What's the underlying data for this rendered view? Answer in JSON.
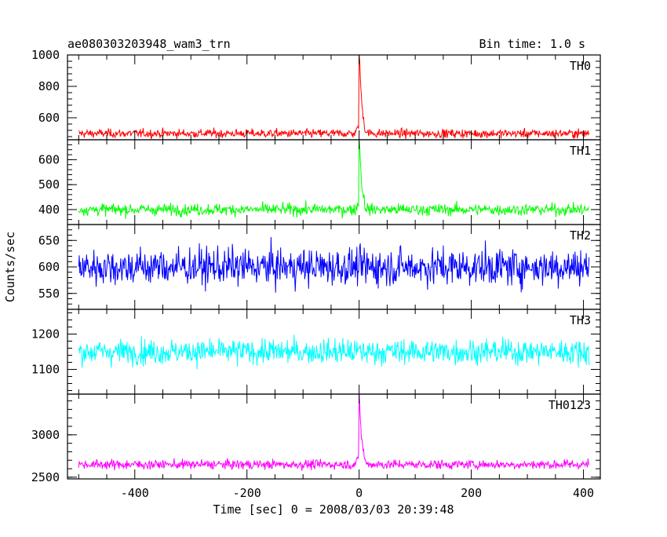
{
  "chart_data": {
    "type": "line",
    "title_left": "ae080303203948_wam3_trn",
    "title_right": "Bin time: 1.0 s",
    "xlabel": "Time [sec] 0 = 2008/03/03 20:39:48",
    "ylabel": "Counts/sec",
    "xlim": [
      -520,
      430
    ],
    "x_ticks": [
      -400,
      -200,
      0,
      200,
      400
    ],
    "x_range": [
      -500,
      410
    ],
    "panels": [
      {
        "name": "TH0",
        "color": "#ff0000",
        "ylim": [
          460,
          1000
        ],
        "ticks": [
          600,
          800,
          1000
        ],
        "base": 500,
        "noise": 35,
        "peak": 520
      },
      {
        "name": "TH1",
        "color": "#00ff00",
        "ylim": [
          340,
          680
        ],
        "ticks": [
          400,
          500,
          600
        ],
        "base": 400,
        "noise": 30,
        "peak": 280
      },
      {
        "name": "TH2",
        "color": "#0000ff",
        "ylim": [
          520,
          680
        ],
        "ticks": [
          550,
          600,
          650
        ],
        "base": 600,
        "noise": 45,
        "peak": 0
      },
      {
        "name": "TH3",
        "color": "#00ffff",
        "ylim": [
          1030,
          1270
        ],
        "ticks": [
          1100,
          1200
        ],
        "base": 1150,
        "noise": 45,
        "peak": 0
      },
      {
        "name": "TH0123",
        "color": "#ff00ff",
        "ylim": [
          2480,
          3480
        ],
        "ticks": [
          2500,
          3000
        ],
        "base": 2650,
        "noise": 70,
        "peak": 800
      }
    ]
  }
}
